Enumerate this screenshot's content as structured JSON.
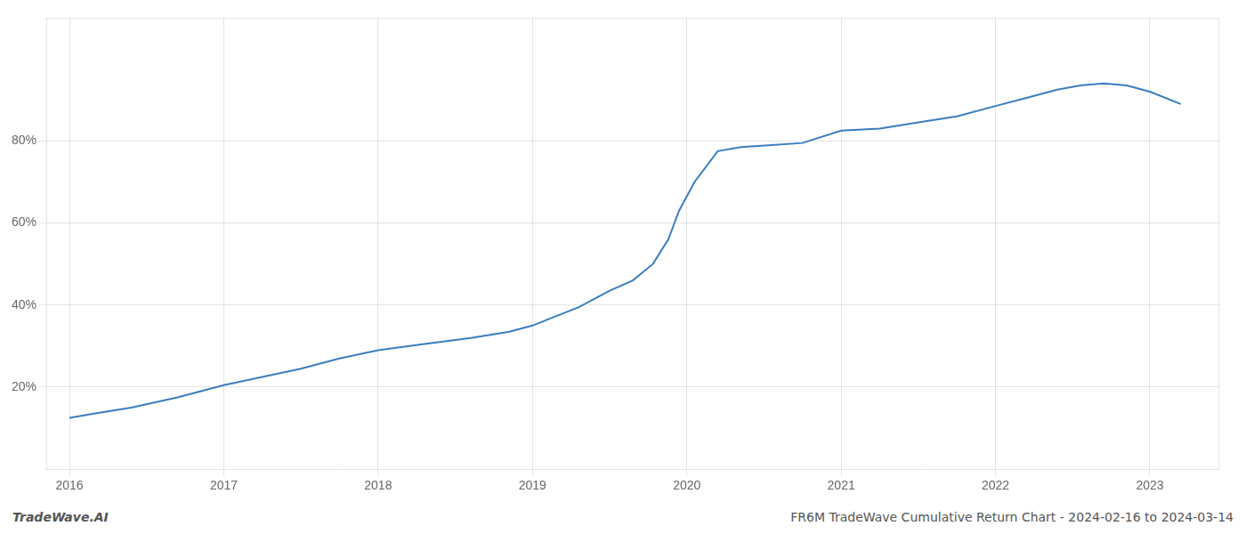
{
  "chart_data": {
    "type": "line",
    "x": [
      2016.0,
      2016.15,
      2016.4,
      2016.7,
      2017.0,
      2017.25,
      2017.5,
      2017.75,
      2018.0,
      2018.3,
      2018.6,
      2018.85,
      2019.0,
      2019.1,
      2019.3,
      2019.5,
      2019.65,
      2019.78,
      2019.88,
      2019.95,
      2020.05,
      2020.2,
      2020.35,
      2020.55,
      2020.75,
      2021.0,
      2021.25,
      2021.5,
      2021.75,
      2022.0,
      2022.2,
      2022.4,
      2022.55,
      2022.7,
      2022.85,
      2023.0,
      2023.2
    ],
    "values": [
      12.5,
      13.5,
      15.0,
      17.5,
      20.5,
      22.5,
      24.5,
      27.0,
      29.0,
      30.5,
      32.0,
      33.5,
      35.0,
      36.5,
      39.5,
      43.5,
      46.0,
      50.0,
      56.0,
      63.0,
      70.0,
      77.5,
      78.5,
      79.0,
      79.5,
      82.5,
      83.0,
      84.5,
      86.0,
      88.5,
      90.5,
      92.5,
      93.5,
      94.0,
      93.5,
      92.0,
      89.0
    ],
    "color": "#3a7ebf",
    "xlim": [
      2015.85,
      2023.45
    ],
    "xticks": [
      2016,
      2017,
      2018,
      2019,
      2020,
      2021,
      2022,
      2023
    ],
    "ylim": [
      0,
      110
    ],
    "yticks": [
      {
        "value": 20,
        "label": "20%"
      },
      {
        "value": 40,
        "label": "40%"
      },
      {
        "value": 60,
        "label": "60%"
      },
      {
        "value": 80,
        "label": "80%"
      }
    ],
    "grid": true,
    "annotations": [
      "TradeWave.AI",
      "FR6M TradeWave Cumulative Return Chart - 2024-02-16 to 2024-03-14"
    ]
  }
}
